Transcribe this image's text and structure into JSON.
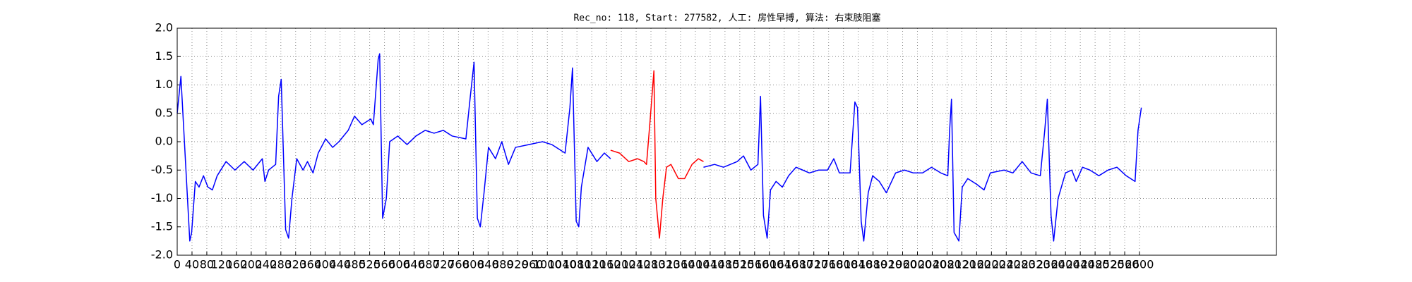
{
  "chart_data": {
    "type": "line",
    "title": "Rec_no: 118, Start: 277582, 人工: 房性早搏, 算法: 右束肢阻塞",
    "xlim": [
      0,
      2970
    ],
    "xticks": [
      0,
      40,
      80,
      120,
      160,
      200,
      240,
      280,
      320,
      360,
      400,
      440,
      480,
      520,
      560,
      600,
      640,
      680,
      720,
      760,
      800,
      840,
      880,
      920,
      960,
      1000,
      1040,
      1080,
      1120,
      1160,
      1200,
      1240,
      1280,
      1320,
      1360,
      1400,
      1440,
      1480,
      1520,
      1560,
      1600,
      1640,
      1680,
      1720,
      1760,
      1800,
      1840,
      1880,
      1920,
      1960,
      2000,
      2040,
      2080,
      2120,
      2160,
      2200,
      2240,
      2280,
      2320,
      2360,
      2400,
      2440,
      2480,
      2520,
      2560,
      2600
    ],
    "ylim": [
      -2,
      2
    ],
    "yticks": [
      {
        "value": -2,
        "label": "-2.0"
      },
      -1.5,
      {
        "value": -1,
        "label": "-1.0"
      },
      -0.5,
      {
        "value": 0,
        "label": "0.0"
      },
      0.5,
      {
        "value": 1,
        "label": "1.0"
      },
      1.5,
      {
        "value": 2,
        "label": "2.0"
      }
    ],
    "grid": true,
    "series": [
      {
        "color": "#0000ff",
        "x": [
          0,
          10,
          17,
          34,
          39,
          49,
          59,
          71,
          83,
          95,
          108,
          132,
          156,
          181,
          205,
          230,
          237,
          247,
          266,
          274,
          281,
          293,
          301,
          310,
          323,
          340,
          352,
          367,
          381,
          401,
          420,
          437,
          462,
          479,
          499,
          523,
          530,
          543,
          547,
          555,
          565,
          574,
          596,
          621,
          645,
          670,
          694,
          719,
          743,
          780,
          792,
          802,
          811,
          819,
          829,
          841,
          860,
          877,
          895,
          914,
          951,
          987,
          1012,
          1048,
          1061,
          1068,
          1078,
          1085,
          1092,
          1110,
          1134,
          1154,
          1171
        ],
        "values": [
          0.5,
          1.15,
          0.3,
          -1.75,
          -1.6,
          -0.7,
          -0.8,
          -0.6,
          -0.8,
          -0.85,
          -0.6,
          -0.35,
          -0.5,
          -0.35,
          -0.5,
          -0.3,
          -0.7,
          -0.5,
          -0.4,
          0.8,
          1.1,
          -1.55,
          -1.7,
          -1.0,
          -0.3,
          -0.5,
          -0.35,
          -0.55,
          -0.2,
          0.05,
          -0.1,
          0.0,
          0.2,
          0.45,
          0.3,
          0.4,
          0.3,
          1.45,
          1.55,
          -1.35,
          -1.0,
          0.0,
          0.1,
          -0.05,
          0.1,
          0.2,
          0.15,
          0.2,
          0.1,
          0.05,
          0.8,
          1.4,
          -1.35,
          -1.5,
          -0.9,
          -0.1,
          -0.3,
          0.0,
          -0.4,
          -0.1,
          -0.05,
          0.0,
          -0.05,
          -0.2,
          0.6,
          1.3,
          -1.4,
          -1.5,
          -0.8,
          -0.1,
          -0.35,
          -0.2,
          -0.3
        ]
      },
      {
        "color": "#ff0000",
        "x": [
          1171,
          1195,
          1220,
          1244,
          1261,
          1268,
          1278,
          1288,
          1293,
          1303,
          1312,
          1322,
          1334,
          1354,
          1371,
          1391,
          1408,
          1422
        ],
        "values": [
          -0.15,
          -0.2,
          -0.35,
          -0.3,
          -0.35,
          -0.4,
          0.4,
          1.25,
          -1.0,
          -1.7,
          -1.0,
          -0.45,
          -0.4,
          -0.65,
          -0.65,
          -0.4,
          -0.3,
          -0.35
        ]
      },
      {
        "color": "#0000ff",
        "x": [
          1422,
          1452,
          1476,
          1513,
          1530,
          1550,
          1569,
          1576,
          1584,
          1594,
          1603,
          1618,
          1635,
          1652,
          1672,
          1708,
          1733,
          1757,
          1774,
          1789,
          1818,
          1831,
          1838,
          1848,
          1855,
          1867,
          1879,
          1897,
          1916,
          1941,
          1965,
          1989,
          2014,
          2038,
          2063,
          2082,
          2087,
          2092,
          2099,
          2112,
          2121,
          2136,
          2160,
          2180,
          2197,
          2234,
          2258,
          2283,
          2307,
          2332,
          2344,
          2351,
          2361,
          2368,
          2380,
          2400,
          2417,
          2429,
          2446,
          2466,
          2490,
          2515,
          2539,
          2564,
          2588,
          2596,
          2605
        ],
        "values": [
          -0.45,
          -0.4,
          -0.45,
          -0.35,
          -0.25,
          -0.5,
          -0.4,
          0.8,
          -1.3,
          -1.7,
          -0.85,
          -0.7,
          -0.8,
          -0.6,
          -0.45,
          -0.55,
          -0.5,
          -0.5,
          -0.3,
          -0.55,
          -0.55,
          0.7,
          0.6,
          -1.4,
          -1.75,
          -0.9,
          -0.6,
          -0.7,
          -0.9,
          -0.55,
          -0.5,
          -0.55,
          -0.55,
          -0.45,
          -0.55,
          -0.6,
          0.2,
          0.75,
          -1.6,
          -1.75,
          -0.8,
          -0.65,
          -0.75,
          -0.85,
          -0.55,
          -0.5,
          -0.55,
          -0.35,
          -0.55,
          -0.6,
          0.2,
          0.75,
          -1.3,
          -1.75,
          -1.0,
          -0.55,
          -0.5,
          -0.7,
          -0.45,
          -0.5,
          -0.6,
          -0.5,
          -0.45,
          -0.6,
          -0.7,
          0.2,
          0.6
        ]
      }
    ]
  }
}
